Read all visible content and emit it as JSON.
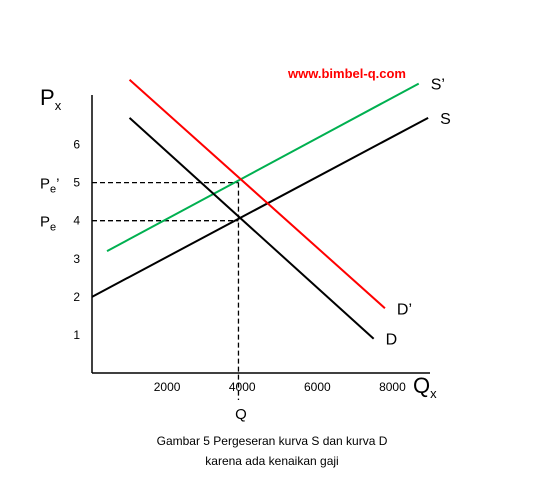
{
  "watermark": "www.bimbel-q.com",
  "watermark_color": "#ff0000",
  "caption": {
    "line1": "Gambar 5  Pergeseran kurva S dan kurva D",
    "line2": "karena ada kenaikan gaji"
  },
  "chart_data": {
    "type": "line",
    "ylabel_main": "P",
    "ylabel_sub": "x",
    "xlabel_main": "Q",
    "xlabel_sub": "x",
    "xlim": [
      0,
      9000
    ],
    "ylim": [
      0,
      7.3
    ],
    "x_ticks": [
      {
        "value": 2000,
        "label": "2000"
      },
      {
        "value": 4000,
        "label": "4000"
      },
      {
        "value": 6000,
        "label": "6000"
      },
      {
        "value": 8000,
        "label": "8000"
      }
    ],
    "y_ticks": [
      {
        "value": 1,
        "label": "1"
      },
      {
        "value": 2,
        "label": "2"
      },
      {
        "value": 3,
        "label": "3"
      },
      {
        "value": 4,
        "label": "4"
      },
      {
        "value": 5,
        "label": "5"
      },
      {
        "value": 6,
        "label": "6"
      }
    ],
    "series": [
      {
        "name": "S",
        "color": "#000000",
        "x": [
          0,
          8950
        ],
        "y": [
          2,
          6.7
        ]
      },
      {
        "name": "S’",
        "color": "#00b050",
        "x": [
          400,
          8700
        ],
        "y": [
          3.2,
          7.6
        ]
      },
      {
        "name": "D",
        "color": "#000000",
        "x": [
          1000,
          7500
        ],
        "y": [
          6.7,
          0.9
        ]
      },
      {
        "name": "D’",
        "color": "#ff0000",
        "x": [
          1000,
          7800
        ],
        "y": [
          7.7,
          1.7
        ]
      }
    ],
    "equilibria": [
      {
        "label_main": "P",
        "label_sub": "e",
        "label_prime": "",
        "price": 4,
        "quantity": 3900
      },
      {
        "label_main": "P",
        "label_sub": "e",
        "label_prime": "’",
        "price": 5,
        "quantity": 3900
      }
    ],
    "q_marker_label": "Q"
  }
}
